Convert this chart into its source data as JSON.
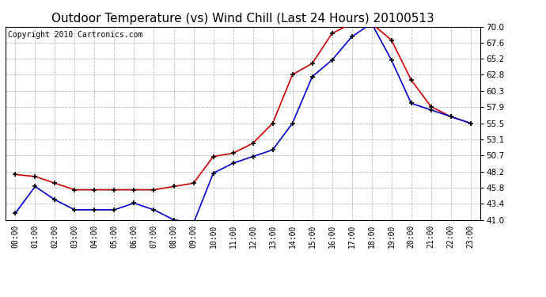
{
  "title": "Outdoor Temperature (vs) Wind Chill (Last 24 Hours) 20100513",
  "copyright": "Copyright 2010 Cartronics.com",
  "x_labels": [
    "00:00",
    "01:00",
    "02:00",
    "03:00",
    "04:00",
    "05:00",
    "06:00",
    "07:00",
    "08:00",
    "09:00",
    "10:00",
    "11:00",
    "12:00",
    "13:00",
    "14:00",
    "15:00",
    "16:00",
    "17:00",
    "18:00",
    "19:00",
    "20:00",
    "21:00",
    "22:00",
    "23:00"
  ],
  "temp": [
    47.8,
    47.5,
    46.5,
    45.5,
    45.5,
    45.5,
    45.5,
    45.5,
    46.0,
    46.5,
    50.5,
    51.0,
    52.5,
    55.5,
    62.8,
    64.5,
    69.0,
    70.5,
    70.5,
    68.0,
    62.0,
    58.0,
    56.5,
    55.5
  ],
  "wind_chill": [
    42.0,
    46.0,
    44.0,
    42.5,
    42.5,
    42.5,
    43.5,
    42.5,
    41.0,
    40.5,
    48.0,
    49.5,
    50.5,
    51.5,
    55.5,
    62.5,
    65.0,
    68.5,
    70.5,
    65.0,
    58.5,
    57.5,
    56.5,
    55.5
  ],
  "temp_color": "#cc0000",
  "wind_chill_color": "#0000cc",
  "ylim_min": 41.0,
  "ylim_max": 70.0,
  "yticks": [
    41.0,
    43.4,
    45.8,
    48.2,
    50.7,
    53.1,
    55.5,
    57.9,
    60.3,
    62.8,
    65.2,
    67.6,
    70.0
  ],
  "background_color": "#ffffff",
  "grid_color": "#bbbbbb",
  "title_fontsize": 11,
  "copyright_fontsize": 7,
  "tick_fontsize": 7,
  "ytick_fontsize": 7.5
}
